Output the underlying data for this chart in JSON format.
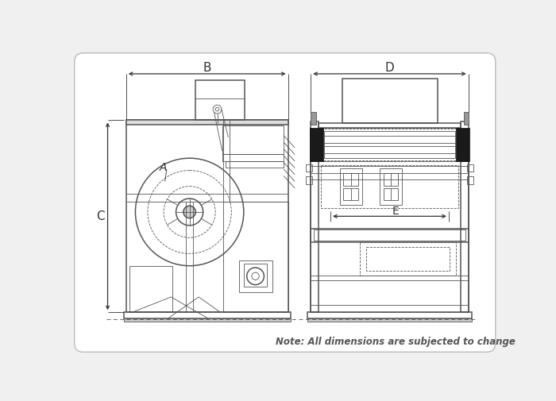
{
  "bg_color": "#f0f0f0",
  "line_color": "#555555",
  "dark_line": "#333333",
  "black": "#111111",
  "note_text": "Note: All dimensions are subjected to change",
  "label_B": "B",
  "label_C": "C",
  "label_D": "D",
  "label_E": "E",
  "label_A": "A",
  "font_size_label": 10,
  "font_size_note": 8.5
}
